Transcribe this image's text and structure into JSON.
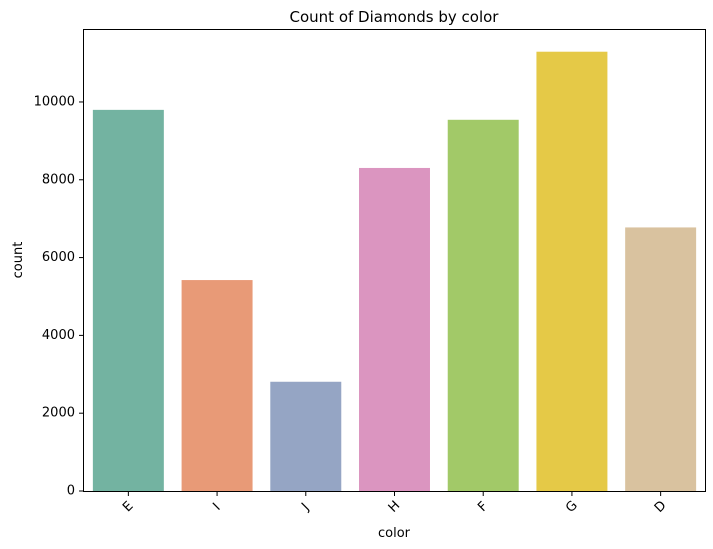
{
  "chart_data": {
    "type": "bar",
    "title": "Count of Diamonds by color",
    "xlabel": "color",
    "ylabel": "count",
    "categories": [
      "E",
      "I",
      "J",
      "H",
      "F",
      "G",
      "D"
    ],
    "values": [
      9797,
      5422,
      2808,
      8304,
      9542,
      11292,
      6775
    ],
    "colors": [
      "#73b3a1",
      "#e89a77",
      "#95a5c4",
      "#db95c0",
      "#a2c968",
      "#e5c947",
      "#d9c29f"
    ],
    "ylim": [
      0,
      11850
    ],
    "yticks": [
      0,
      2000,
      4000,
      6000,
      8000,
      10000
    ],
    "grid": false,
    "legend": "none"
  }
}
